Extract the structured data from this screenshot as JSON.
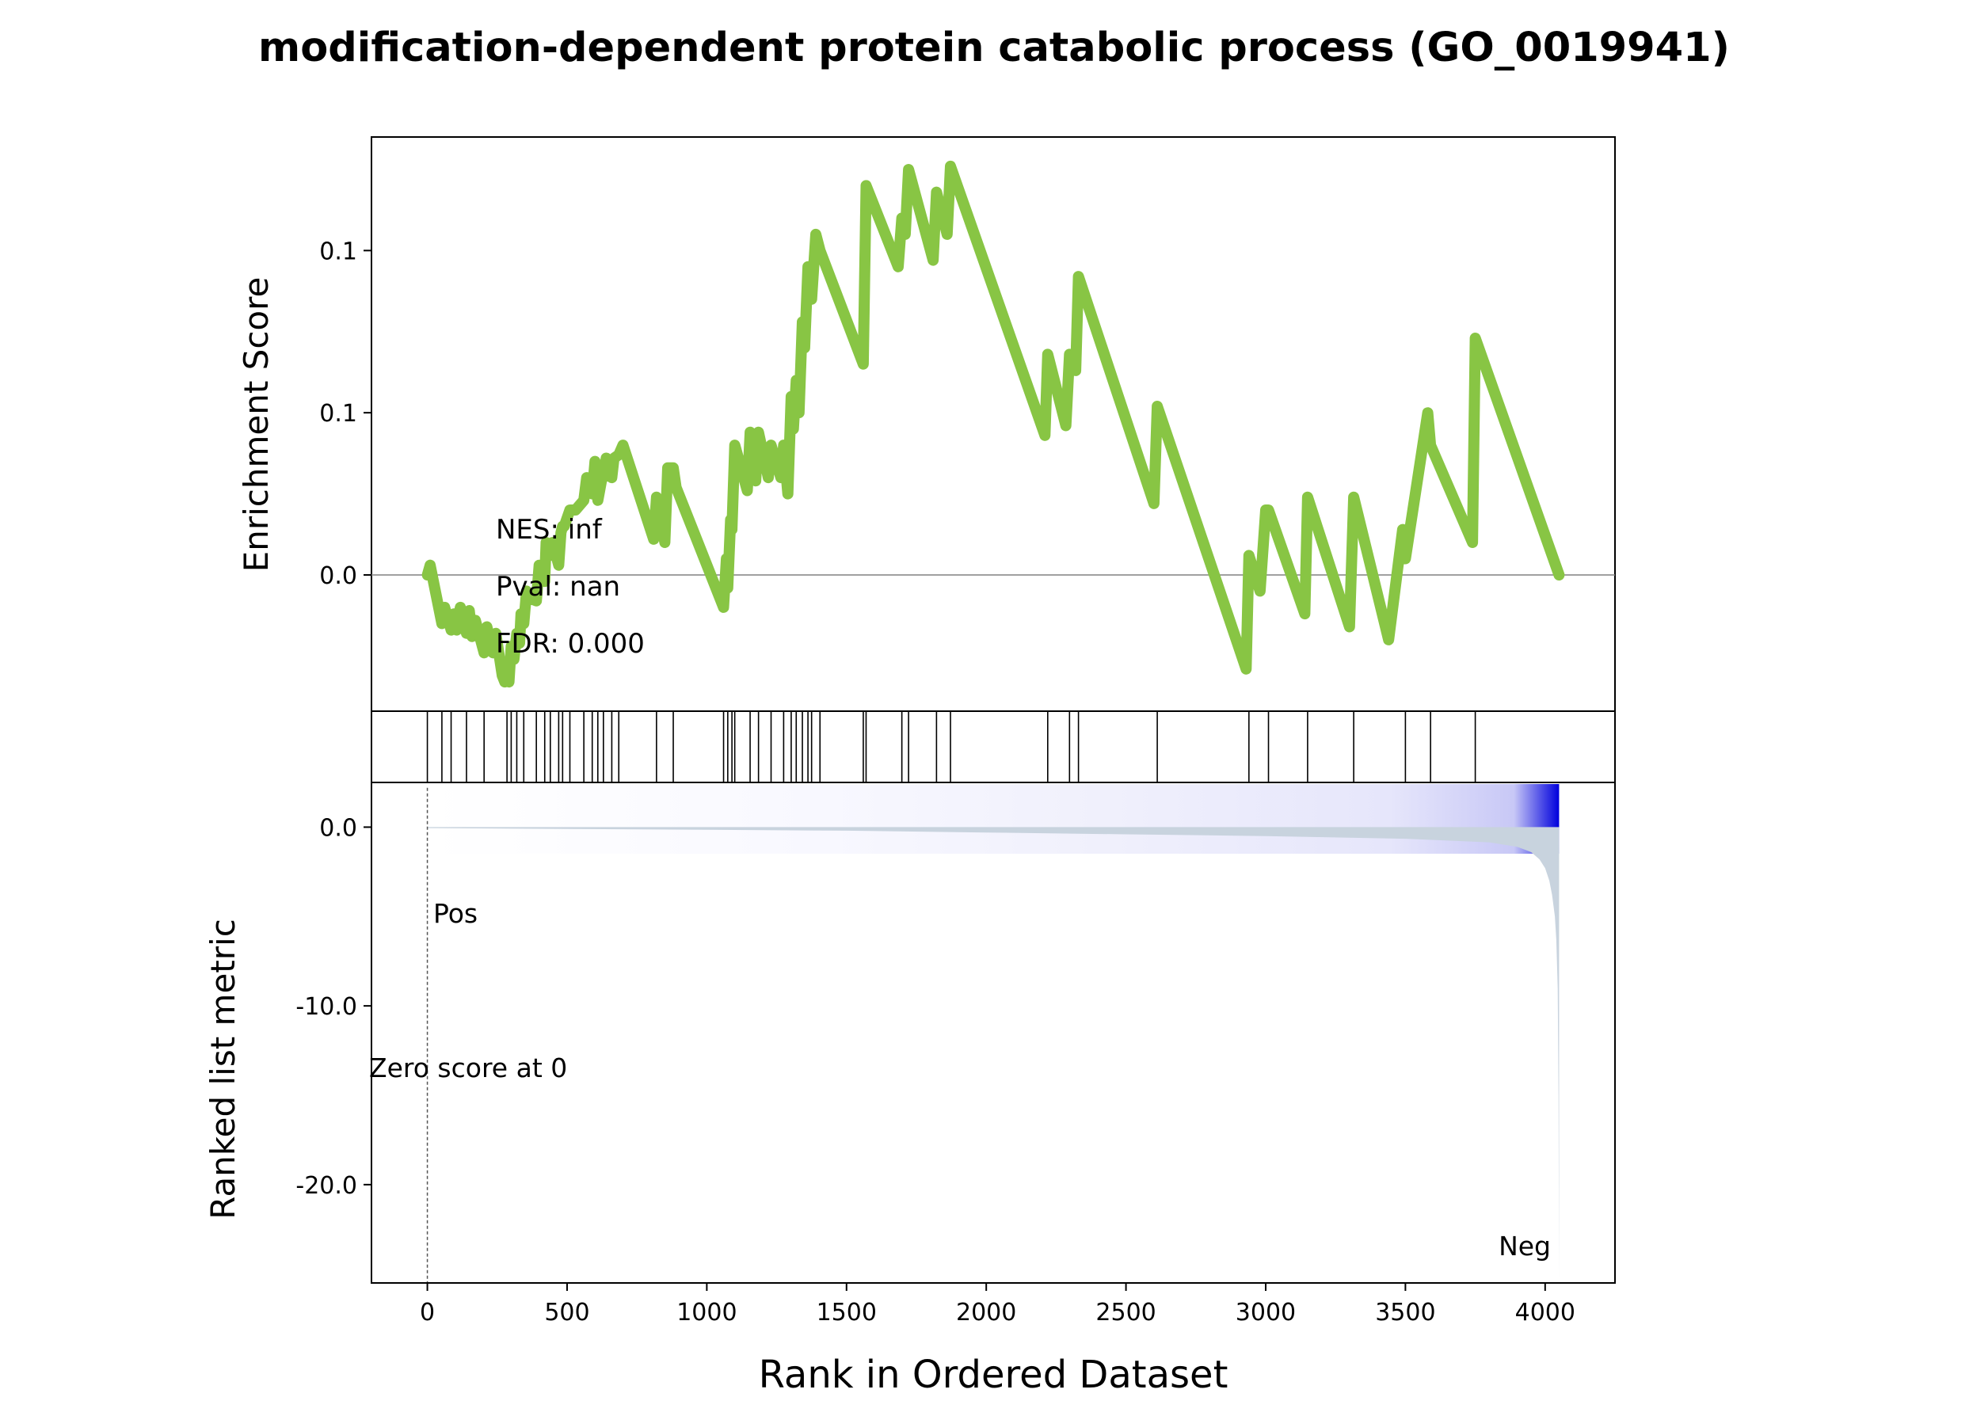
{
  "chart_data": {
    "type": "line",
    "title": "modification-dependent protein catabolic process (GO_0019941)",
    "xlabel": "Rank in Ordered Dataset",
    "xlim": [
      -200,
      4250
    ],
    "x_ticks": [
      "0",
      "500",
      "1000",
      "1500",
      "2000",
      "2500",
      "3000",
      "3500",
      "4000"
    ],
    "x_tick_values": [
      0,
      500,
      1000,
      1500,
      2000,
      2500,
      3000,
      3500,
      4000
    ],
    "grid": false,
    "colors": {
      "es_line": "#88c544",
      "metric_fill": "#c8d3de",
      "pos_label": "#ff0000",
      "neg_label": "#0000ff",
      "heat_high": "#0000dd"
    },
    "enrichment": {
      "ylabel": "Enrichment Score",
      "y_ticks": [
        "0.0",
        "0.1",
        "0.1"
      ],
      "y_tick_values": [
        0,
        0.05,
        0.1
      ],
      "ylim": [
        -0.042,
        0.135
      ],
      "series": [
        {
          "x": [
            0,
            10,
            52,
            62,
            85,
            95,
            105,
            118,
            140,
            150,
            160,
            172,
            203,
            213,
            235,
            245,
            268,
            277,
            285,
            292,
            300,
            310,
            320,
            330,
            335,
            345,
            355,
            360,
            390,
            400,
            420,
            425,
            440,
            448,
            470,
            478,
            484,
            490,
            510,
            530,
            560,
            570,
            590,
            600,
            610,
            625,
            630,
            640,
            660,
            668,
            685,
            700,
            810,
            820,
            850,
            860,
            880,
            890,
            1060,
            1070,
            1075,
            1085,
            1090,
            1100,
            1145,
            1155,
            1175,
            1185,
            1220,
            1230,
            1265,
            1275,
            1290,
            1302,
            1310,
            1320,
            1330,
            1342,
            1350,
            1362,
            1365,
            1375,
            1390,
            1405,
            1560,
            1570,
            1685,
            1698,
            1710,
            1722,
            1810,
            1822,
            1860,
            1872,
            2210,
            2220,
            2285,
            2298,
            2320,
            2330,
            2600,
            2612,
            2930,
            2940,
            2980,
            3000,
            3010,
            3140,
            3150,
            3300,
            3315,
            3440,
            3490,
            3500,
            3580,
            3590,
            3740,
            3750,
            4050
          ],
          "y": [
            0.0,
            0.003,
            -0.015,
            -0.01,
            -0.017,
            -0.012,
            -0.017,
            -0.01,
            -0.018,
            -0.011,
            -0.019,
            -0.014,
            -0.024,
            -0.016,
            -0.024,
            -0.018,
            -0.031,
            -0.033,
            -0.03,
            -0.033,
            -0.022,
            -0.026,
            -0.018,
            -0.021,
            -0.012,
            -0.015,
            -0.005,
            -0.007,
            -0.008,
            0.003,
            -0.002,
            0.01,
            0.006,
            0.01,
            0.003,
            0.013,
            0.015,
            0.015,
            0.02,
            0.02,
            0.023,
            0.03,
            0.025,
            0.035,
            0.023,
            0.03,
            0.03,
            0.036,
            0.03,
            0.036,
            0.037,
            0.04,
            0.011,
            0.024,
            0.01,
            0.033,
            0.033,
            0.027,
            -0.01,
            0.005,
            -0.004,
            0.017,
            0.014,
            0.04,
            0.026,
            0.044,
            0.029,
            0.044,
            0.03,
            0.04,
            0.03,
            0.04,
            0.025,
            0.055,
            0.045,
            0.06,
            0.05,
            0.078,
            0.07,
            0.095,
            0.09,
            0.085,
            0.105,
            0.1,
            0.065,
            0.12,
            0.095,
            0.11,
            0.105,
            0.125,
            0.097,
            0.118,
            0.105,
            0.126,
            0.043,
            0.068,
            0.046,
            0.068,
            0.063,
            0.092,
            0.022,
            0.052,
            -0.029,
            0.006,
            -0.005,
            0.02,
            0.02,
            -0.012,
            0.024,
            -0.016,
            0.024,
            -0.02,
            0.014,
            0.005,
            0.05,
            0.04,
            0.01,
            0.073,
            0.0
          ]
        }
      ],
      "annotations": [
        "NES: inf",
        "Pval: nan",
        "FDR: 0.000"
      ]
    },
    "hits": [
      0,
      52,
      85,
      140,
      203,
      285,
      300,
      320,
      345,
      390,
      420,
      440,
      470,
      484,
      510,
      560,
      590,
      610,
      630,
      660,
      685,
      820,
      880,
      1060,
      1075,
      1090,
      1100,
      1155,
      1185,
      1230,
      1275,
      1302,
      1320,
      1342,
      1362,
      1375,
      1405,
      1560,
      1570,
      1698,
      1722,
      1822,
      1872,
      2220,
      2298,
      2330,
      2612,
      2940,
      3010,
      3150,
      3315,
      3500,
      3590,
      3750
    ],
    "metric": {
      "ylabel": "Ranked list metric",
      "y_ticks": [
        "0.0",
        "-10.0",
        "-20.0"
      ],
      "y_tick_values": [
        0,
        -10,
        -20
      ],
      "ylim": [
        -25.5,
        2.5
      ],
      "x": [
        0,
        500,
        1000,
        1500,
        2000,
        2500,
        3000,
        3500,
        3800,
        3900,
        3950,
        3980,
        4000,
        4015,
        4025,
        4035,
        4040,
        4045,
        4048,
        4050
      ],
      "values": [
        -0.05,
        -0.1,
        -0.15,
        -0.2,
        -0.3,
        -0.4,
        -0.5,
        -0.65,
        -0.85,
        -1.1,
        -1.4,
        -1.8,
        -2.3,
        -3.0,
        -3.8,
        -5.0,
        -6.3,
        -9.0,
        -15.0,
        -25.3
      ],
      "pos_label": "Pos",
      "neg_label": "Neg",
      "zero_label": "Zero score at 0"
    }
  }
}
